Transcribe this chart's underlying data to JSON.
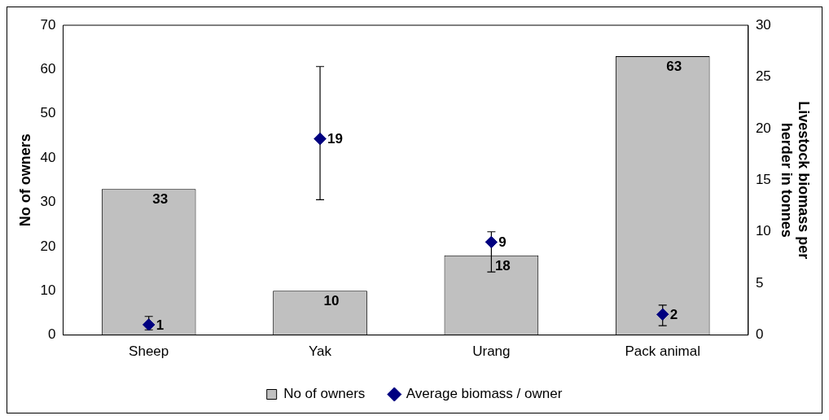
{
  "chart_data": {
    "type": "bar",
    "categories": [
      "Sheep",
      "Yak",
      "Urang",
      "Pack animal"
    ],
    "ylabel": "No of owners",
    "y2label": "Livestock biomass per herder in tonnes",
    "ylim": [
      0,
      70
    ],
    "yticks": [
      0,
      10,
      20,
      30,
      40,
      50,
      60,
      70
    ],
    "y2lim": [
      0,
      30
    ],
    "y2ticks": [
      0,
      5,
      10,
      15,
      20,
      25,
      30
    ],
    "legend": "bottom",
    "grid": false,
    "series": [
      {
        "name": "No of owners",
        "color": "#c0c0c0",
        "values": [
          33,
          10,
          18,
          63
        ],
        "value_labels": [
          "33",
          "10",
          "18",
          "63"
        ]
      },
      {
        "name": "Average biomass / owner",
        "type": "scatter",
        "axis": "y2",
        "marker": "diamond",
        "color": "#000080",
        "values": [
          1,
          19,
          9,
          2
        ],
        "errors": [
          [
            0.5,
            1.8
          ],
          [
            13.1,
            26
          ],
          [
            6.1,
            10.0
          ],
          [
            0.9,
            2.9
          ]
        ],
        "value_labels": [
          "1",
          "19",
          "9",
          "2"
        ]
      }
    ]
  }
}
